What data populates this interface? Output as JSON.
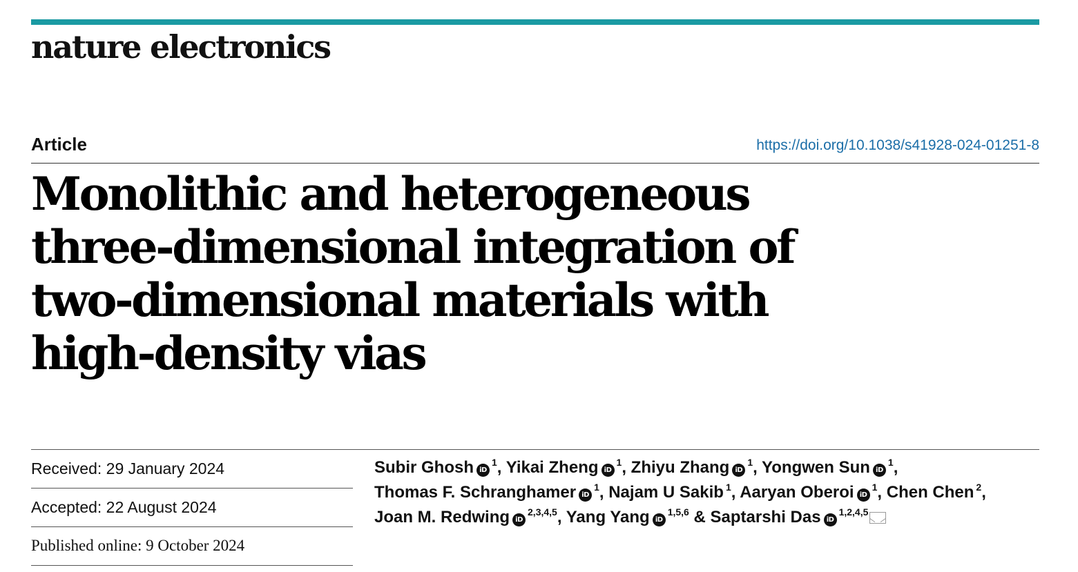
{
  "journal": "nature electronics",
  "article_type": "Article",
  "doi": "https://doi.org/10.1038/s41928-024-01251-8",
  "title_lines": [
    "Monolithic and heterogeneous",
    "three-dimensional integration of",
    "two-dimensional materials with",
    "high-density vias"
  ],
  "dates": {
    "received": "Received: 29 January 2024",
    "accepted": "Accepted: 22 August 2024",
    "published": "Published online: 9 October 2024"
  },
  "authors": [
    {
      "name": "Subir Ghosh",
      "orcid": true,
      "aff": "1"
    },
    {
      "name": "Yikai Zheng",
      "orcid": true,
      "aff": "1"
    },
    {
      "name": "Zhiyu Zhang",
      "orcid": true,
      "aff": "1"
    },
    {
      "name": "Yongwen Sun",
      "orcid": true,
      "aff": "1"
    },
    {
      "name": "Thomas F. Schranghamer",
      "orcid": true,
      "aff": "1"
    },
    {
      "name": "Najam U Sakib",
      "orcid": false,
      "aff": "1"
    },
    {
      "name": "Aaryan Oberoi",
      "orcid": true,
      "aff": "1"
    },
    {
      "name": "Chen Chen",
      "orcid": false,
      "aff": "2"
    },
    {
      "name": "Joan M. Redwing",
      "orcid": true,
      "aff": "2,3,4,5"
    },
    {
      "name": "Yang Yang",
      "orcid": true,
      "aff": "1,5,6"
    },
    {
      "name": "Saptarshi Das",
      "orcid": true,
      "aff": "1,2,4,5"
    }
  ],
  "orcid_label": "iD",
  "icons": {
    "orcid": "orcid-icon",
    "mail": "mail-icon"
  },
  "colors": {
    "accent_bar": "#1a9aa3",
    "doi_link": "#1b6ea8"
  }
}
